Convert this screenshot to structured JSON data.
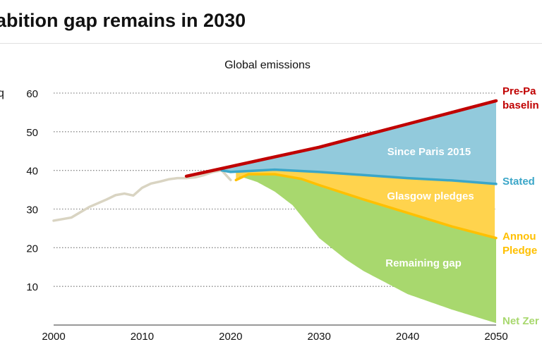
{
  "title": "abition gap remains in 2030",
  "chart_data": {
    "type": "area",
    "subtitle": "Global emissions",
    "ylabel_fragment": "q",
    "xlim": [
      2000,
      2050
    ],
    "ylim": [
      0,
      60
    ],
    "x_ticks": [
      2000,
      2010,
      2020,
      2030,
      2040,
      2050
    ],
    "y_ticks": [
      10,
      20,
      30,
      40,
      50,
      60
    ],
    "grid": "horizontal dotted",
    "series": [
      {
        "name": "historical",
        "color": "#d9d4c2",
        "x": [
          2000,
          2002,
          2004,
          2006,
          2007,
          2008,
          2009,
          2010,
          2011,
          2012,
          2013,
          2014,
          2015,
          2016,
          2017,
          2018,
          2019,
          2020
        ],
        "y": [
          27,
          27.8,
          30.5,
          32.5,
          33.6,
          34,
          33.5,
          35.5,
          36.6,
          37.1,
          37.7,
          38,
          38,
          38.2,
          38.8,
          39.6,
          40,
          37.5
        ]
      },
      {
        "name": "Pre-Paris baseline",
        "label": "Pre-Paris baseline",
        "label_lines": [
          "Pre-Pa",
          "baselin"
        ],
        "color": "#c00000",
        "x": [
          2015,
          2020,
          2025,
          2030,
          2035,
          2040,
          2045,
          2050
        ],
        "y": [
          38.5,
          41,
          43.5,
          46,
          49,
          52,
          55,
          58
        ]
      },
      {
        "name": "Stated",
        "label": "Stated",
        "color": "#3ba6c8",
        "x": [
          2019,
          2020,
          2025,
          2030,
          2035,
          2040,
          2045,
          2050
        ],
        "y": [
          40,
          39.6,
          40.2,
          39.6,
          38.8,
          38,
          37.4,
          36.5
        ]
      },
      {
        "name": "Announced Pledges",
        "label_lines": [
          "Annou",
          "Pledge"
        ],
        "color": "#ffc000",
        "x": [
          2020.6,
          2022,
          2025,
          2028,
          2030,
          2035,
          2040,
          2045,
          2050
        ],
        "y": [
          37.5,
          39,
          39,
          37.8,
          36.2,
          32.5,
          29,
          25.5,
          22.5
        ]
      },
      {
        "name": "Net Zero",
        "label": "Net Zer",
        "color": "#a8d86e",
        "x": [
          2021,
          2023,
          2025,
          2027,
          2030,
          2033,
          2035,
          2040,
          2045,
          2050
        ],
        "y": [
          38.5,
          37,
          34.5,
          31,
          22.5,
          17,
          14,
          8,
          4,
          0.5
        ]
      }
    ],
    "area_labels": [
      {
        "text": "Since Paris 2015",
        "color": "#92cadc"
      },
      {
        "text": "Glasgow pledges",
        "color": "#ffd34d"
      },
      {
        "text": "Remaining gap",
        "color": "#a8d86e"
      }
    ]
  }
}
